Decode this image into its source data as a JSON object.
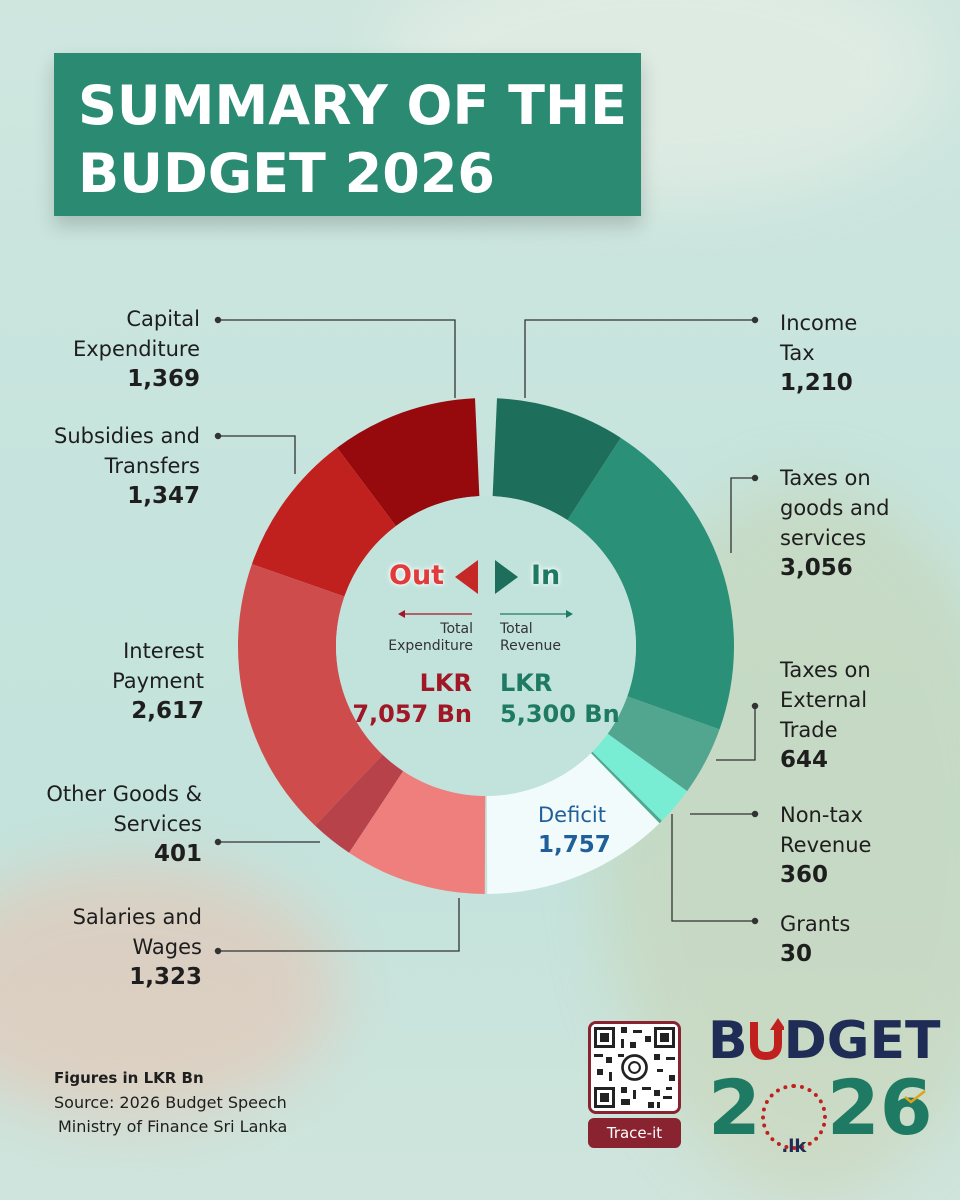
{
  "title": {
    "line1": "SUMMARY OF THE",
    "line2": "BUDGET 2026"
  },
  "chart_data": {
    "type": "pie",
    "unit": "Figures in LKR Bn",
    "expenditure": {
      "header": "Out",
      "caption": "Total Expenditure",
      "total_currency": "LKR",
      "total_text": "7,057 Bn",
      "total": 7057,
      "slices": [
        {
          "label": "Capital Expenditure",
          "value": 1369,
          "value_text": "1,369",
          "color": "#960a0e"
        },
        {
          "label": "Subsidies and Transfers",
          "value": 1347,
          "value_text": "1,347",
          "color": "#c0211f"
        },
        {
          "label": "Interest Payment",
          "value": 2617,
          "value_text": "2,617",
          "color": "#cf4c4c"
        },
        {
          "label": "Other Goods & Services",
          "value": 401,
          "value_text": "401",
          "color": "#b84249"
        },
        {
          "label": "Salaries and Wages",
          "value": 1323,
          "value_text": "1,323",
          "color": "#ee7f7c"
        }
      ]
    },
    "revenue": {
      "header": "In",
      "caption": "Total Revenue",
      "total_currency": "LKR",
      "total_text": "5,300 Bn",
      "total": 5300,
      "slices": [
        {
          "label": "Income Tax",
          "value": 1210,
          "value_text": "1,210",
          "color": "#1e6e5c"
        },
        {
          "label": "Taxes on goods and services",
          "value": 3056,
          "value_text": "3,056",
          "color": "#2a9077"
        },
        {
          "label": "Taxes on External Trade",
          "value": 644,
          "value_text": "644",
          "color": "#52a58f"
        },
        {
          "label": "Non-tax Revenue",
          "value": 360,
          "value_text": "360",
          "color": "#79ecd4"
        },
        {
          "label": "Grants",
          "value": 30,
          "value_text": "30",
          "color": "#4fa98f"
        }
      ],
      "deficit": {
        "label": "Deficit",
        "value": 1757,
        "value_text": "1,757",
        "color": "#f2fbfb"
      }
    }
  },
  "labels": {
    "capital": {
      "l1": "Capital",
      "l2": "Expenditure",
      "v": "1,369"
    },
    "subsidies": {
      "l1": "Subsidies and",
      "l2": "Transfers",
      "v": "1,347"
    },
    "interest": {
      "l1": "Interest",
      "l2": "Payment",
      "v": "2,617"
    },
    "othergoods": {
      "l1": "Other Goods &",
      "l2": "Services",
      "v": "401"
    },
    "salaries": {
      "l1": "Salaries and",
      "l2": "Wages",
      "v": "1,323"
    },
    "incometax": {
      "l1": "Income",
      "l2": "Tax",
      "v": "1,210"
    },
    "goodstax": {
      "l1": "Taxes on",
      "l2": "goods and",
      "l3": "services",
      "v": "3,056"
    },
    "externaltax": {
      "l1": "Taxes on",
      "l2": "External",
      "l3": "Trade",
      "v": "644"
    },
    "nontax": {
      "l1": "Non-tax",
      "l2": "Revenue",
      "v": "360"
    },
    "grants": {
      "l1": "Grants",
      "v": "30"
    },
    "deficit": {
      "l1": "Deficit",
      "v": "1,757"
    }
  },
  "center": {
    "out": "Out",
    "in": "In",
    "exp_caption_l1": "Total",
    "exp_caption_l2": "Expenditure",
    "rev_caption_l1": "Total",
    "rev_caption_l2": "Revenue",
    "exp_currency": "LKR",
    "exp_total": "7,057 Bn",
    "rev_currency": "LKR",
    "rev_total": "5,300 Bn"
  },
  "footer": {
    "unit": "Figures in LKR Bn",
    "source1": "Source: 2026 Budget Speech",
    "source2": "Ministry of Finance Sri Lanka"
  },
  "qr": {
    "tag": "Trace-it"
  },
  "logo": {
    "line1_a": "B",
    "line1_b": "DGET",
    "line2_a": "2",
    "line2_mid": ".lk",
    "line2_b": "26"
  },
  "colors": {
    "title_bg": "#2a8a72",
    "exp_accent": "#a01826",
    "rev_accent": "#1e7a62",
    "deficit_text": "#1f5f9a"
  }
}
